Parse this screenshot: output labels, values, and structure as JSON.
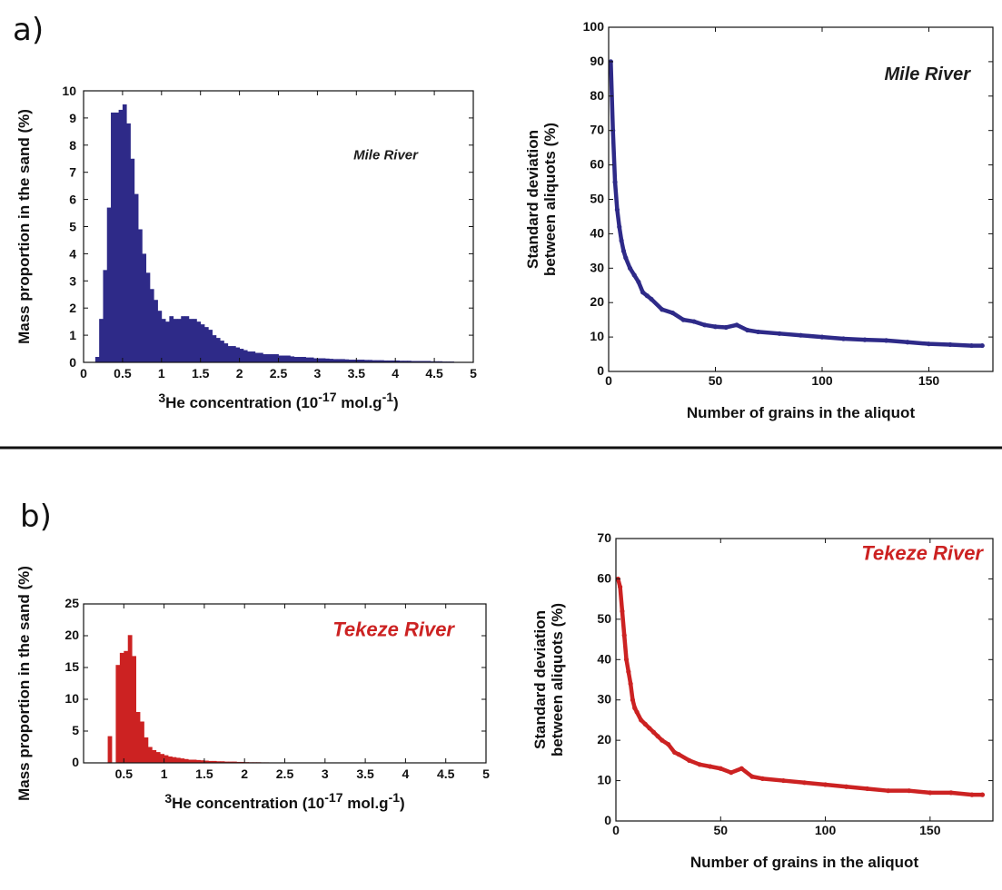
{
  "panels": {
    "a": "a)",
    "b": "b)"
  },
  "chart_data": [
    {
      "id": "a-hist",
      "type": "bar",
      "annotation": "Mile River",
      "annotation_color": "#1c1c1c",
      "bar_color": "#2e2a88",
      "xlabel": {
        "pre": "3",
        "mid": "He concentration (10",
        "exp": "-17",
        "post": " mol.g",
        "exp2": "-1",
        "end": ")"
      },
      "ylabel": "Mass proportion in the sand (%)",
      "xlim": [
        0,
        5
      ],
      "ylim": [
        0,
        10
      ],
      "xticks": [
        "0",
        "0.5",
        "1",
        "1.5",
        "2",
        "2.5",
        "3",
        "3.5",
        "4",
        "4.5",
        "5"
      ],
      "yticks": [
        "0",
        "1",
        "2",
        "3",
        "4",
        "5",
        "6",
        "7",
        "8",
        "9",
        "10"
      ],
      "bin_width": 0.05,
      "bin_starts": [
        0.15,
        0.2,
        0.25,
        0.3,
        0.35,
        0.4,
        0.45,
        0.5,
        0.55,
        0.6,
        0.65,
        0.7,
        0.75,
        0.8,
        0.85,
        0.9,
        0.95,
        1.0,
        1.05,
        1.1,
        1.15,
        1.2,
        1.25,
        1.3,
        1.35,
        1.4,
        1.45,
        1.5,
        1.55,
        1.6,
        1.65,
        1.7,
        1.75,
        1.8,
        1.85,
        1.9,
        1.95,
        2.0,
        2.05,
        2.1,
        2.15,
        2.2,
        2.25,
        2.3,
        2.35,
        2.4,
        2.45,
        2.5,
        2.55,
        2.6,
        2.65,
        2.7,
        2.75,
        2.8,
        2.85,
        2.9,
        2.95,
        3.0,
        3.05,
        3.1,
        3.15,
        3.2,
        3.25,
        3.3,
        3.35,
        3.4,
        3.45,
        3.5,
        3.55,
        3.6,
        3.65,
        3.7,
        3.75,
        3.8,
        3.85,
        3.9,
        3.95,
        4.0,
        4.05,
        4.1,
        4.15,
        4.2,
        4.25,
        4.3,
        4.35,
        4.4,
        4.45,
        4.5,
        4.55,
        4.6,
        4.65,
        4.7
      ],
      "values": [
        0.2,
        1.6,
        3.4,
        5.7,
        9.2,
        9.2,
        9.3,
        9.5,
        8.8,
        7.5,
        6.2,
        4.9,
        4.0,
        3.3,
        2.7,
        2.3,
        1.9,
        1.6,
        1.5,
        1.7,
        1.6,
        1.6,
        1.7,
        1.7,
        1.6,
        1.6,
        1.5,
        1.4,
        1.3,
        1.2,
        1.0,
        0.9,
        0.8,
        0.7,
        0.6,
        0.6,
        0.55,
        0.5,
        0.45,
        0.4,
        0.4,
        0.35,
        0.35,
        0.3,
        0.3,
        0.3,
        0.3,
        0.25,
        0.25,
        0.25,
        0.22,
        0.2,
        0.2,
        0.2,
        0.18,
        0.18,
        0.15,
        0.15,
        0.15,
        0.14,
        0.13,
        0.12,
        0.12,
        0.12,
        0.11,
        0.1,
        0.1,
        0.1,
        0.1,
        0.09,
        0.09,
        0.08,
        0.08,
        0.08,
        0.07,
        0.07,
        0.07,
        0.07,
        0.06,
        0.06,
        0.06,
        0.05,
        0.05,
        0.05,
        0.05,
        0.05,
        0.04,
        0.04,
        0.04,
        0.03,
        0.03,
        0.03
      ]
    },
    {
      "id": "a-line",
      "type": "line",
      "annotation": "Mile River",
      "annotation_color": "#1c1c1c",
      "line_color": "#2e2a88",
      "xlabel": "Number of grains in the aliquot",
      "ylabel": [
        "Standard deviation",
        "between aliquots (%)"
      ],
      "xlim": [
        0,
        180
      ],
      "ylim": [
        0,
        100
      ],
      "xticks": [
        {
          "v": 0,
          "t": "0"
        },
        {
          "v": 50,
          "t": "50"
        },
        {
          "v": 100,
          "t": "100"
        },
        {
          "v": 150,
          "t": "150"
        }
      ],
      "yticks": [
        {
          "v": 0,
          "t": "0"
        },
        {
          "v": 10,
          "t": "10"
        },
        {
          "v": 20,
          "t": "20"
        },
        {
          "v": 30,
          "t": "30"
        },
        {
          "v": 40,
          "t": "40"
        },
        {
          "v": 50,
          "t": "50"
        },
        {
          "v": 60,
          "t": "60"
        },
        {
          "v": 70,
          "t": "70"
        },
        {
          "v": 80,
          "t": "80"
        },
        {
          "v": 90,
          "t": "90"
        },
        {
          "v": 100,
          "t": "100"
        }
      ],
      "x": [
        1,
        2,
        3,
        4,
        5,
        6,
        7,
        8,
        10,
        12,
        14,
        16,
        18,
        20,
        25,
        30,
        35,
        40,
        45,
        50,
        55,
        60,
        65,
        70,
        80,
        90,
        100,
        110,
        120,
        130,
        140,
        150,
        160,
        170,
        175
      ],
      "y": [
        90,
        70,
        55,
        47,
        42,
        38,
        35,
        33,
        30,
        28,
        26,
        23,
        22,
        21,
        18,
        17,
        15,
        14.5,
        13.5,
        13,
        12.8,
        13.5,
        12,
        11.5,
        11,
        10.5,
        10,
        9.5,
        9.2,
        9,
        8.5,
        8,
        7.8,
        7.5,
        7.5
      ]
    },
    {
      "id": "b-hist",
      "type": "bar",
      "annotation": "Tekeze River",
      "annotation_color": "#cc2222",
      "bar_color": "#cc2222",
      "xlabel": {
        "pre": "3",
        "mid": "He concentration (10",
        "exp": "-17",
        "post": " mol.g",
        "exp2": "-1",
        "end": ")"
      },
      "ylabel": "Mass proportion in the sand (%)",
      "xlim": [
        0,
        5
      ],
      "ylim": [
        0,
        25
      ],
      "xticks": [
        "",
        "0.5",
        "1",
        "1.5",
        "2",
        "2.5",
        "3",
        "3.5",
        "4",
        "4.5",
        "5"
      ],
      "yticks": [
        {
          "v": 0,
          "t": "0"
        },
        {
          "v": 5,
          "t": "5"
        },
        {
          "v": 10,
          "t": "10"
        },
        {
          "v": 15,
          "t": "15"
        },
        {
          "v": 20,
          "t": "20"
        },
        {
          "v": 25,
          "t": "25"
        }
      ],
      "bin_width": 0.05,
      "bin_starts": [
        0.3,
        0.35,
        0.4,
        0.45,
        0.5,
        0.55,
        0.6,
        0.65,
        0.7,
        0.75,
        0.8,
        0.85,
        0.9,
        0.95,
        1.0,
        1.05,
        1.1,
        1.15,
        1.2,
        1.25,
        1.3,
        1.35,
        1.4,
        1.45,
        1.5,
        1.55,
        1.6,
        1.65,
        1.7,
        1.75,
        1.8,
        1.85,
        1.9,
        1.95,
        2.0,
        2.05,
        2.1,
        2.15,
        2.2,
        2.25,
        2.3,
        2.35,
        2.4,
        2.45
      ],
      "values": [
        4.2,
        0,
        15.4,
        17.3,
        17.6,
        20.1,
        16.8,
        8.0,
        6.5,
        4.0,
        2.5,
        2.0,
        1.7,
        1.4,
        1.2,
        1.0,
        0.9,
        0.8,
        0.7,
        0.6,
        0.5,
        0.5,
        0.45,
        0.4,
        0.35,
        0.3,
        0.3,
        0.25,
        0.25,
        0.2,
        0.2,
        0.2,
        0.15,
        0.15,
        0.12,
        0.1,
        0.1,
        0.1,
        0.08,
        0.08,
        0.06,
        0.05,
        0.05,
        0.04
      ]
    },
    {
      "id": "b-line",
      "type": "line",
      "annotation": "Tekeze River",
      "annotation_color": "#cc2222",
      "line_color": "#cc2222",
      "xlabel": "Number of grains in the aliquot",
      "ylabel": [
        "Standard deviation",
        "between aliquots (%)"
      ],
      "xlim": [
        0,
        180
      ],
      "ylim": [
        0,
        70
      ],
      "xticks": [
        {
          "v": 0,
          "t": "0"
        },
        {
          "v": 50,
          "t": "50"
        },
        {
          "v": 100,
          "t": "100"
        },
        {
          "v": 150,
          "t": "150"
        }
      ],
      "yticks": [
        {
          "v": 0,
          "t": "0"
        },
        {
          "v": 10,
          "t": "10"
        },
        {
          "v": 20,
          "t": "20"
        },
        {
          "v": 30,
          "t": "30"
        },
        {
          "v": 40,
          "t": "40"
        },
        {
          "v": 50,
          "t": "50"
        },
        {
          "v": 60,
          "t": "60"
        },
        {
          "v": 70,
          "t": "70"
        }
      ],
      "x": [
        1,
        2,
        3,
        4,
        5,
        6,
        7,
        8,
        9,
        10,
        12,
        14,
        16,
        18,
        20,
        22,
        25,
        28,
        30,
        35,
        40,
        45,
        50,
        55,
        60,
        65,
        70,
        80,
        90,
        100,
        110,
        120,
        130,
        140,
        150,
        160,
        170,
        175
      ],
      "y": [
        60,
        58,
        52,
        46,
        40,
        37,
        34,
        30,
        28,
        27,
        25,
        24,
        23,
        22,
        21,
        20,
        19,
        17,
        16.5,
        15,
        14,
        13.5,
        13,
        12,
        13,
        11,
        10.5,
        10,
        9.5,
        9,
        8.5,
        8,
        7.5,
        7.5,
        7,
        7,
        6.5,
        6.5
      ]
    }
  ]
}
